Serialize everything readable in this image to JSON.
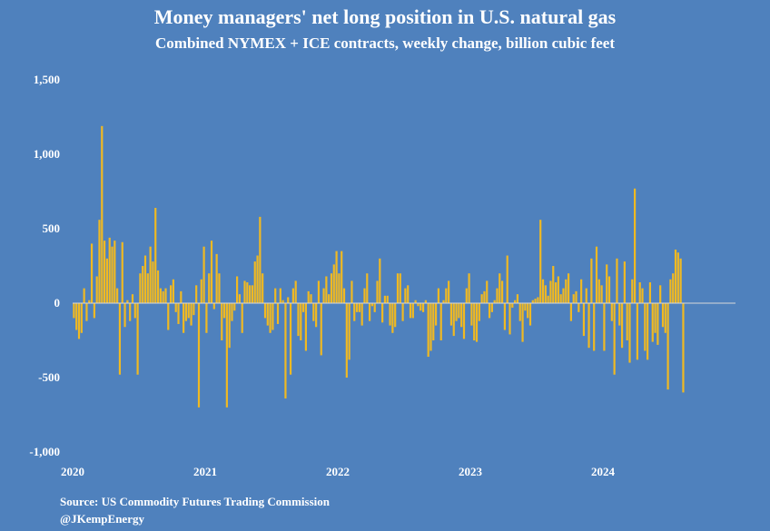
{
  "chart_data": {
    "type": "bar",
    "title": "Money managers' net long position in U.S. natural gas",
    "subtitle": "Combined NYMEX + ICE contracts, weekly change, billion cubic feet",
    "xlabel": "",
    "ylabel": "",
    "ylim": [
      -1000,
      1500
    ],
    "yticks": [
      1500,
      1000,
      500,
      0,
      -500,
      -1000
    ],
    "ytick_labels": [
      "1,500",
      "1,000",
      "500",
      "0",
      "-500",
      "-1,000"
    ],
    "xticks": [
      2020,
      2021,
      2022,
      2023,
      2024
    ],
    "xtick_labels": [
      "2020",
      "2021",
      "2022",
      "2023",
      "2024"
    ],
    "xlim": [
      2020,
      2025
    ],
    "grid": false,
    "legend": "none",
    "bar_color": "#f0b922",
    "zero_line_color": "#d9d9d9",
    "x_start_year": 2020,
    "weeks_per_year": 52,
    "values": [
      -100,
      -180,
      -240,
      -200,
      100,
      -120,
      20,
      400,
      -100,
      180,
      560,
      1190,
      420,
      300,
      440,
      380,
      420,
      100,
      -480,
      410,
      -160,
      20,
      -120,
      60,
      -100,
      -480,
      200,
      250,
      320,
      200,
      380,
      280,
      640,
      220,
      100,
      80,
      100,
      -180,
      120,
      160,
      -60,
      -140,
      80,
      -200,
      -120,
      -100,
      -150,
      -80,
      120,
      -700,
      160,
      380,
      -200,
      200,
      420,
      -40,
      330,
      200,
      -250,
      -100,
      -700,
      -300,
      -120,
      -50,
      180,
      60,
      -200,
      150,
      140,
      120,
      120,
      280,
      320,
      580,
      200,
      -100,
      -150,
      -200,
      -180,
      100,
      -140,
      100,
      20,
      -640,
      40,
      -480,
      100,
      150,
      -220,
      -250,
      -60,
      -320,
      80,
      60,
      -120,
      -160,
      150,
      -350,
      100,
      180,
      60,
      200,
      260,
      350,
      200,
      350,
      100,
      -500,
      -380,
      150,
      -120,
      -60,
      -60,
      -150,
      100,
      200,
      -120,
      -20,
      -60,
      150,
      300,
      -130,
      50,
      50,
      -150,
      -200,
      -160,
      200,
      200,
      -120,
      100,
      120,
      -100,
      -100,
      20,
      -20,
      -50,
      -60,
      20,
      -360,
      -320,
      -250,
      -150,
      100,
      -250,
      20,
      100,
      150,
      -150,
      -220,
      -120,
      -100,
      -160,
      -240,
      100,
      200,
      -150,
      -250,
      -260,
      -120,
      60,
      80,
      150,
      -100,
      -60,
      20,
      100,
      200,
      150,
      -180,
      320,
      -210,
      -30,
      20,
      60,
      -120,
      -260,
      -50,
      -100,
      -150,
      20,
      30,
      40,
      560,
      160,
      120,
      50,
      150,
      250,
      140,
      180,
      60,
      100,
      160,
      200,
      -120,
      60,
      80,
      -60,
      160,
      -220,
      100,
      -300,
      300,
      -320,
      380,
      160,
      120,
      -320,
      260,
      180,
      -120,
      -480,
      300,
      -150,
      -300,
      280,
      -250,
      -400,
      160,
      770,
      -380,
      140,
      100,
      -320,
      -380,
      140,
      -260,
      -200,
      -280,
      120,
      -160,
      -200,
      -580,
      160,
      200,
      360,
      340,
      300,
      -600
    ]
  }
}
